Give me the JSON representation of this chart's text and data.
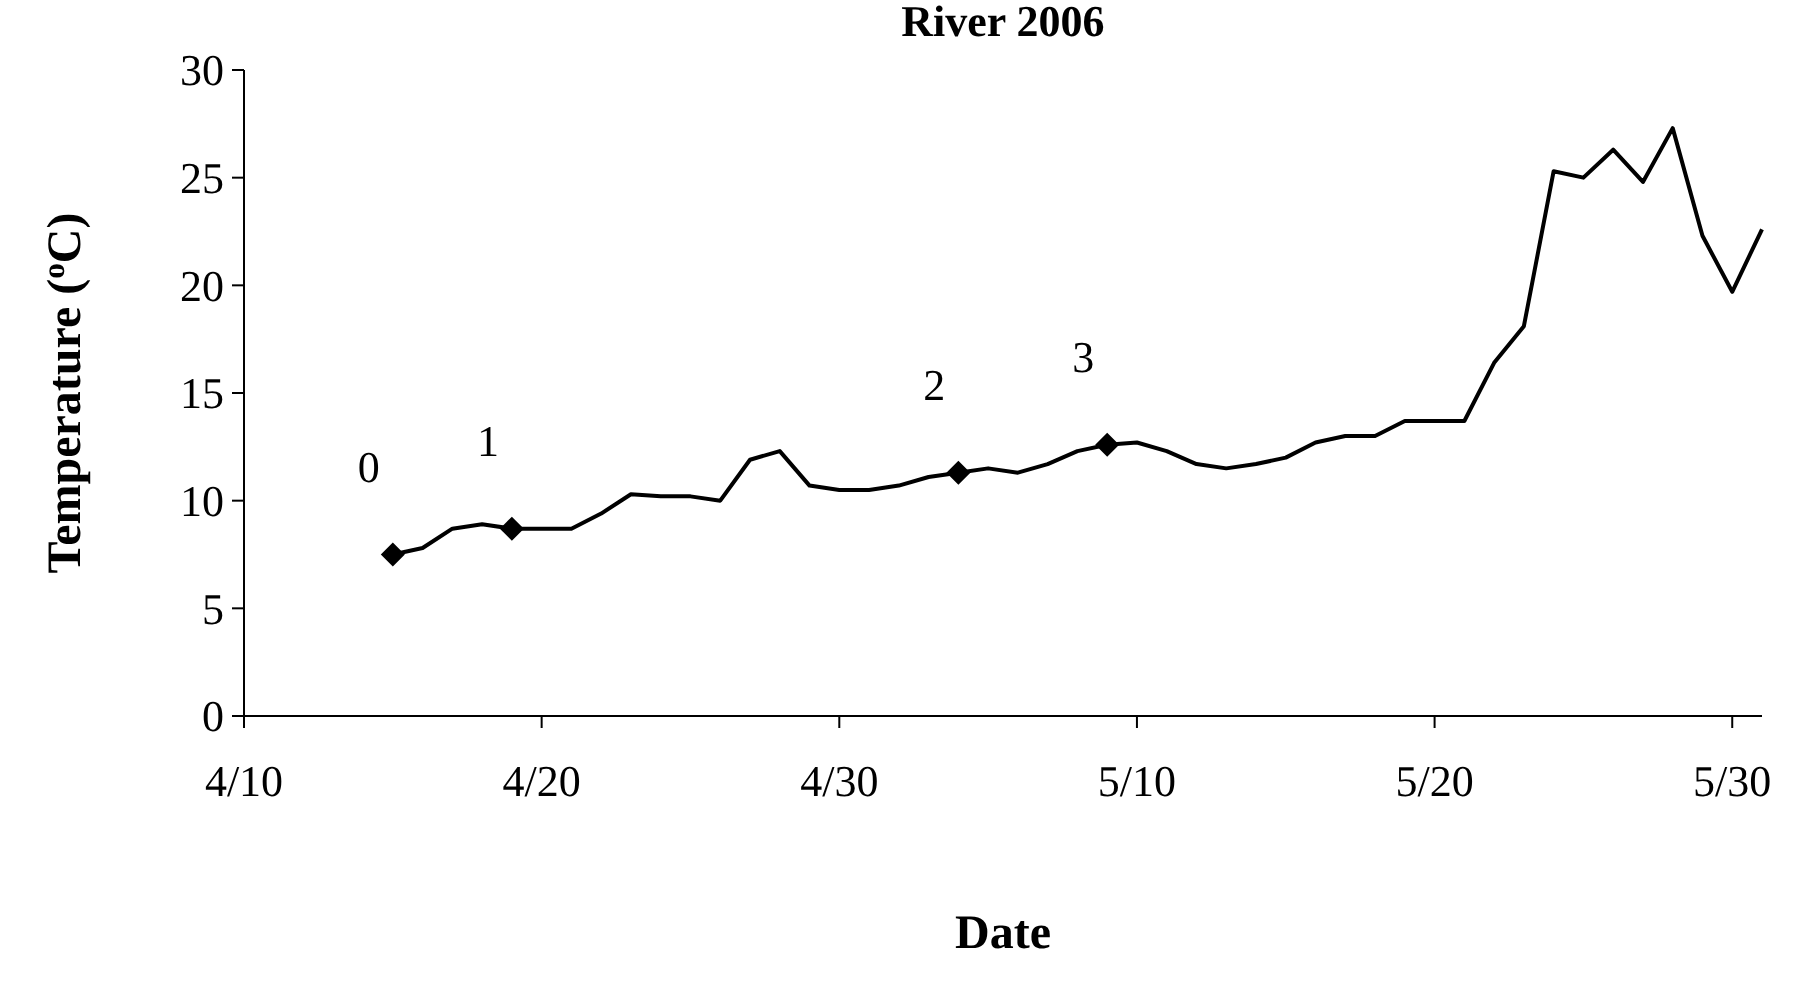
{
  "chart_data": {
    "type": "line",
    "title": "River 2006",
    "xlabel": "Date",
    "ylabel": "Temperature ($^{o}$C)",
    "series": [
      {
        "color": "#000000",
        "marker": "none",
        "line_style": "solid",
        "x": [
          "--04-15",
          "--04-16",
          "--04-17",
          "--04-18",
          "--04-19",
          "--04-20",
          "--04-21",
          "--04-22",
          "--04-23",
          "--04-24",
          "--04-25",
          "--04-26",
          "--04-27",
          "--04-28",
          "--04-29",
          "--04-30",
          "--05-01",
          "--05-02",
          "--05-03",
          "--05-04",
          "--05-05",
          "--05-06",
          "--05-07",
          "--05-08",
          "--05-09",
          "--05-10",
          "--05-11",
          "--05-12",
          "--05-13",
          "--05-14",
          "--05-15",
          "--05-16",
          "--05-17",
          "--05-18",
          "--05-19",
          "--05-20",
          "--05-21",
          "--05-22",
          "--05-23",
          "--05-24",
          "--05-25",
          "--05-26",
          "--05-27",
          "--05-28",
          "--05-29",
          "--05-30",
          "--05-31"
        ],
        "values": [
          7.5,
          7.8,
          8.7,
          8.9,
          8.7,
          8.7,
          8.7,
          9.4,
          10.3,
          10.2,
          10.2,
          10.0,
          11.9,
          12.3,
          10.7,
          10.5,
          10.5,
          10.7,
          11.1,
          11.3,
          11.5,
          11.3,
          11.7,
          12.3,
          12.6,
          12.7,
          12.3,
          11.7,
          11.5,
          11.7,
          12.0,
          12.7,
          13.0,
          13.0,
          13.7,
          13.7,
          13.7,
          16.4,
          18.1,
          25.3,
          25.0,
          26.3,
          24.8,
          27.3,
          22.3,
          19.7,
          22.6
        ]
      },
      {
        "type": "scatter",
        "color": "#000000",
        "marker": "diamond",
        "x": [
          "--04-15",
          "--04-19",
          "--05-04",
          "--05-09"
        ],
        "values": [
          7.5,
          8.7,
          11.3,
          12.6
        ]
      }
    ],
    "xlim": [
      "--04-10",
      "--05-31"
    ],
    "xticks": [
      {
        "value": "--04-10",
        "label": "4/10"
      },
      {
        "value": "--04-20",
        "label": "4/20"
      },
      {
        "value": "--04-30",
        "label": "4/30"
      },
      {
        "value": "--05-10",
        "label": "5/10"
      },
      {
        "value": "--05-20",
        "label": "5/20"
      },
      {
        "value": "--05-30",
        "label": "5/30"
      }
    ],
    "ylim": [
      0,
      30
    ],
    "yticks": [
      0,
      5,
      10,
      15,
      20,
      25,
      30
    ],
    "grid": false,
    "annotations": [
      {
        "text": "0",
        "x": "--04-15",
        "y": 7.5
      },
      {
        "text": "1",
        "x": "--04-19",
        "y": 8.7
      },
      {
        "text": "2",
        "x": "--05-04",
        "y": 11.3
      },
      {
        "text": "3",
        "x": "--05-09",
        "y": 12.6
      }
    ]
  }
}
